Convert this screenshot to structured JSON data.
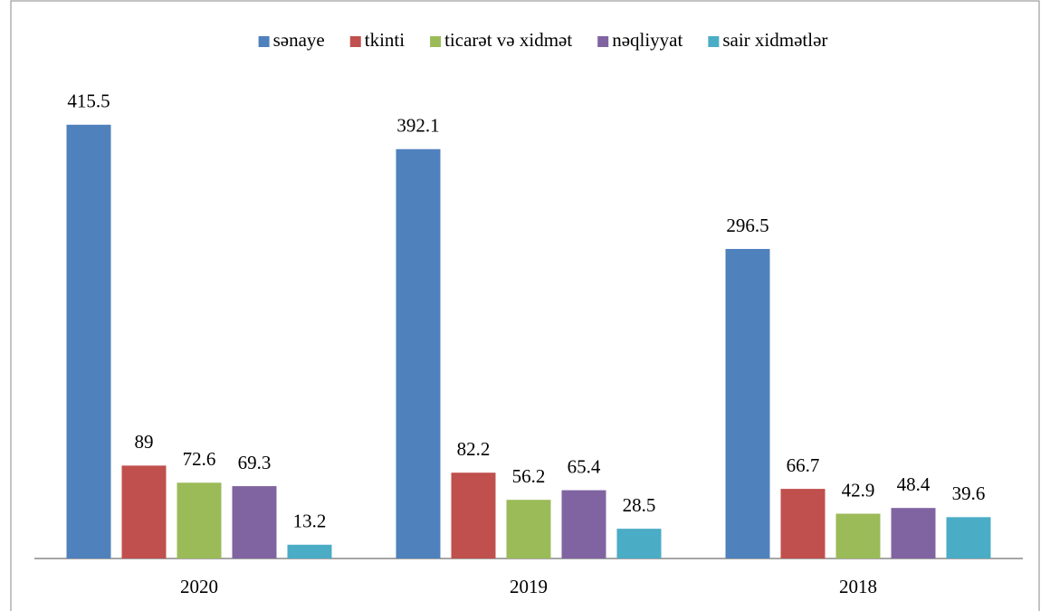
{
  "chart_data": {
    "type": "bar",
    "categories": [
      "2020",
      "2019",
      "2018"
    ],
    "series": [
      {
        "name": "sənaye",
        "color": "#4f81bd",
        "values": [
          415.5,
          392.1,
          296.5
        ]
      },
      {
        "name": "tkinti",
        "color": "#c0504d",
        "values": [
          89,
          82.2,
          66.7
        ]
      },
      {
        "name": "ticarət və xidmət",
        "color": "#9bbb59",
        "values": [
          72.6,
          56.2,
          42.9
        ]
      },
      {
        "name": "nəqliyyat",
        "color": "#8064a2",
        "values": [
          69.3,
          65.4,
          48.4
        ]
      },
      {
        "name": "sair xidmətlər",
        "color": "#4bacc6",
        "values": [
          13.2,
          28.5,
          39.6
        ]
      }
    ],
    "ylim": [
      0,
      450
    ],
    "legend": "top",
    "grid": false
  }
}
